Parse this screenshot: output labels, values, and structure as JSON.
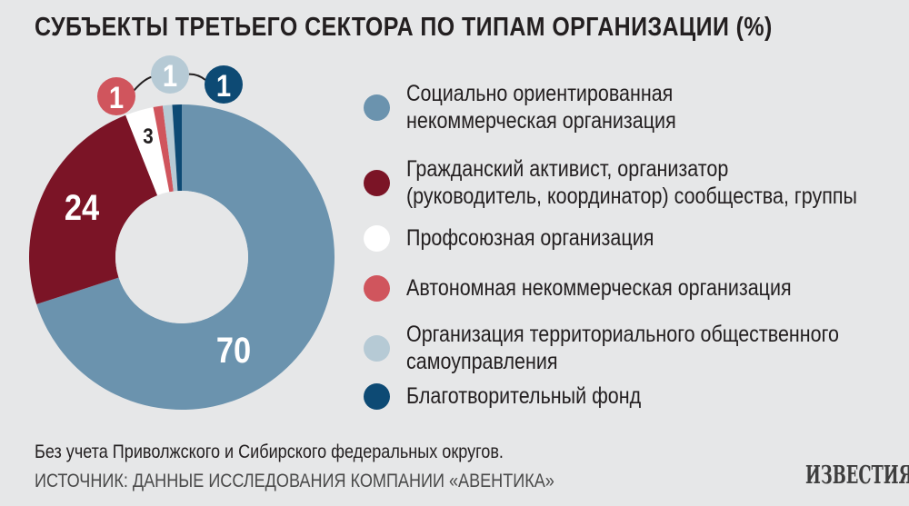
{
  "title": "СУБЪЕКТЫ ТРЕТЬЕГО СЕКТОРА ПО ТИПАМ ОРГАНИЗАЦИИ (%)",
  "colors": {
    "background": "#e6e7e8",
    "social_nko": "#6b93ae",
    "civic_activist": "#7b1426",
    "trade_union": "#ffffff",
    "autonomous_nko": "#d0555d",
    "tos": "#b6cad5",
    "charity_fund": "#0d4a74"
  },
  "chart_data": {
    "type": "pie",
    "categories": [
      "Социально ориентированная некоммерческая организация",
      "Гражданский активист, организатор (руководитель, координатор) сообщества, группы",
      "Профсоюзная организация",
      "Автономная некоммерческая организация",
      "Организация территориального общественного самоуправления",
      "Благотворительный фонд"
    ],
    "values": [
      70,
      24,
      3,
      1,
      1,
      1
    ],
    "labels": [
      "70",
      "24",
      "3",
      "1",
      "1",
      "1"
    ],
    "donut": true
  },
  "legend": [
    {
      "label": "Социально ориентированная\nнекоммерческая организация",
      "color": "#6b93ae"
    },
    {
      "label": "Гражданский активист, организатор\n(руководитель, координатор) сообщества, группы",
      "color": "#7b1426"
    },
    {
      "label": "Профсоюзная организация",
      "color": "#ffffff"
    },
    {
      "label": "Автономная некоммерческая организация",
      "color": "#d0555d"
    },
    {
      "label": "Организация территориального общественного\nсамоуправления",
      "color": "#b6cad5"
    },
    {
      "label": "Благотворительный фонд",
      "color": "#0d4a74"
    }
  ],
  "note": "Без учета Приволжского и Сибирского федеральных округов.",
  "source": "ИСТОЧНИК: ДАННЫЕ ИССЛЕДОВАНИЯ КОМПАНИИ «АВЕНТИКА»",
  "logo": "ИЗВЕСТИЯ"
}
